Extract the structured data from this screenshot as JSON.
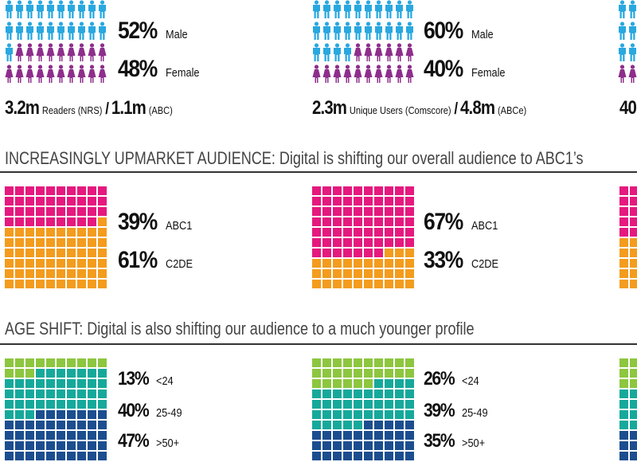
{
  "colors": {
    "male": "#29a8e0",
    "female": "#8e2e8c",
    "abc1": "#e5197e",
    "c2de": "#f39c1e",
    "age_under24": "#8dc63f",
    "age_25_49": "#16a99b",
    "age_50plus": "#1c4e8f"
  },
  "gender": {
    "left": {
      "male_pct": "52%",
      "male_label": "Male",
      "female_pct": "48%",
      "female_label": "Female",
      "male_share": 0.52,
      "source_a_value": "3.2m",
      "source_a_label": "Readers (NRS)",
      "separator": "/",
      "source_b_value": "1.1m",
      "source_b_label": "(ABC)"
    },
    "middle": {
      "male_pct": "60%",
      "male_label": "Male",
      "female_pct": "40%",
      "female_label": "Female",
      "male_share": 0.6,
      "source_a_value": "2.3m",
      "source_a_label": "Unique Users (Comscore)",
      "separator": "/",
      "source_b_value": "4.8m",
      "source_b_label": "(ABCe)"
    },
    "right_partial_text": "40"
  },
  "social": {
    "heading": "INCREASINGLY UPMARKET AUDIENCE: Digital is shifting our overall audience to ABC1’s",
    "left": {
      "abc1_pct": "39%",
      "abc1_label": "ABC1",
      "c2de_pct": "61%",
      "c2de_label": "C2DE",
      "abc1_share": 0.39
    },
    "middle": {
      "abc1_pct": "67%",
      "abc1_label": "ABC1",
      "c2de_pct": "33%",
      "c2de_label": "C2DE",
      "abc1_share": 0.67
    }
  },
  "age": {
    "heading": "AGE SHIFT: Digital is also shifting our audience to a much younger profile",
    "left": {
      "a_pct": "13%",
      "a_label": "<24",
      "b_pct": "40%",
      "b_label": "25-49",
      "c_pct": "47%",
      "c_label": ">50+",
      "shares": [
        0.13,
        0.4,
        0.47
      ]
    },
    "middle": {
      "a_pct": "26%",
      "a_label": "<24",
      "b_pct": "39%",
      "b_label": "25-49",
      "c_pct": "35%",
      "c_label": ">50+",
      "shares": [
        0.26,
        0.39,
        0.35
      ]
    }
  }
}
